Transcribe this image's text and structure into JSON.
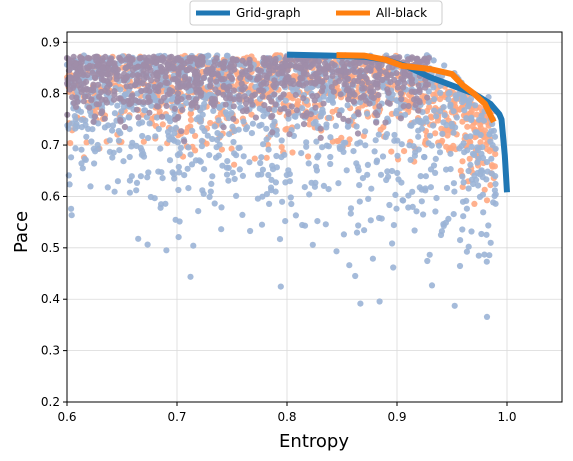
{
  "chart_data": {
    "type": "scatter",
    "title": "",
    "xlabel": "Entropy",
    "ylabel": "Pace",
    "xlim": [
      0.6,
      1.05
    ],
    "ylim": [
      0.2,
      0.92
    ],
    "xticks": [
      "0.6",
      "0.7",
      "0.8",
      "0.9",
      "1.0"
    ],
    "yticks": [
      "0.2",
      "0.3",
      "0.4",
      "0.5",
      "0.6",
      "0.7",
      "0.8",
      "0.9"
    ],
    "grid": true,
    "legend_position": "top-center",
    "series": [
      {
        "name": "Grid-graph",
        "kind": "line",
        "color": "#1f77b4",
        "points": [
          [
            0.8,
            0.876
          ],
          [
            0.84,
            0.874
          ],
          [
            0.87,
            0.872
          ],
          [
            0.89,
            0.866
          ],
          [
            0.91,
            0.852
          ],
          [
            0.93,
            0.832
          ],
          [
            0.95,
            0.816
          ],
          [
            0.97,
            0.8
          ],
          [
            0.985,
            0.78
          ],
          [
            0.993,
            0.76
          ],
          [
            0.995,
            0.75
          ],
          [
            0.998,
            0.68
          ],
          [
            1.0,
            0.608
          ]
        ]
      },
      {
        "name": "All-black",
        "kind": "line",
        "color": "#ff7f0e",
        "points": [
          [
            0.845,
            0.875
          ],
          [
            0.87,
            0.874
          ],
          [
            0.89,
            0.866
          ],
          [
            0.905,
            0.854
          ],
          [
            0.93,
            0.848
          ],
          [
            0.95,
            0.838
          ],
          [
            0.96,
            0.816
          ],
          [
            0.97,
            0.8
          ],
          [
            0.98,
            0.78
          ],
          [
            0.988,
            0.745
          ]
        ]
      }
    ],
    "scatter_series": [
      {
        "color": "#ffa882",
        "count": 900
      },
      {
        "color": "#9bb4d6",
        "count": 1100
      },
      {
        "color": "#9e8da8",
        "count": 850
      }
    ],
    "legend": [
      {
        "label": "Grid-graph",
        "color": "#1f77b4"
      },
      {
        "label": "All-black",
        "color": "#ff7f0e"
      }
    ]
  }
}
